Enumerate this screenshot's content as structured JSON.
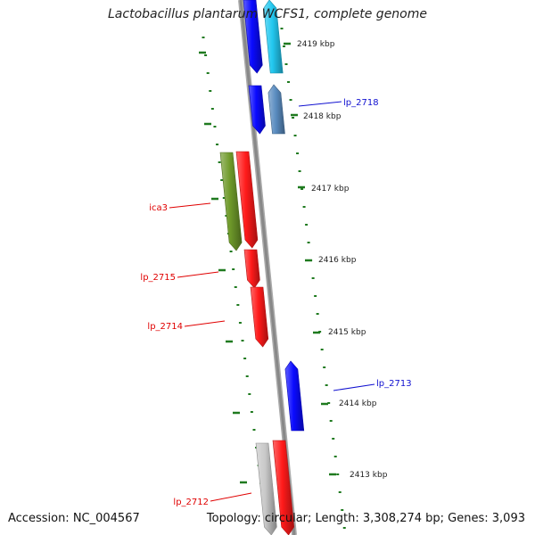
{
  "title": "Lactobacillus plantarum WCFS1, complete genome",
  "accession": "Accession: NC_004567",
  "topology": "Topology: circular; Length: 3,308,274 bp; Genes: 3,093",
  "colors": {
    "backbone": "#888888",
    "ticks": "#1f7a1f",
    "red": "#ff1a1a",
    "blue": "#0a0aff",
    "lightblue": "#22c8f0",
    "steelblue": "#5a8cc0",
    "olive": "#6f9a2a",
    "gray": "#c8c8c8"
  },
  "positions": [
    {
      "label": "2419 kbp"
    },
    {
      "label": "2418 kbp"
    },
    {
      "label": "2417 kbp"
    },
    {
      "label": "2416 kbp"
    },
    {
      "label": "2415 kbp"
    },
    {
      "label": "2414 kbp"
    },
    {
      "label": "2413 kbp"
    }
  ],
  "genes": [
    {
      "label": "",
      "strand": "minus",
      "color": "blue"
    },
    {
      "label": "",
      "strand": "plus",
      "color": "lightblue"
    },
    {
      "label": "",
      "strand": "minus",
      "color": "blue"
    },
    {
      "label": "lp_2718",
      "strand": "plus",
      "color": "steelblue"
    },
    {
      "label": "ica3",
      "strand": "minus",
      "color": "olive"
    },
    {
      "label": "",
      "strand": "minus",
      "color": "red"
    },
    {
      "label": "lp_2715",
      "strand": "minus",
      "color": "red"
    },
    {
      "label": "lp_2714",
      "strand": "minus",
      "color": "red"
    },
    {
      "label": "lp_2713",
      "strand": "plus",
      "color": "blue"
    },
    {
      "label": "",
      "strand": "minus",
      "color": "gray"
    },
    {
      "label": "lp_2712",
      "strand": "minus",
      "color": "red"
    }
  ]
}
